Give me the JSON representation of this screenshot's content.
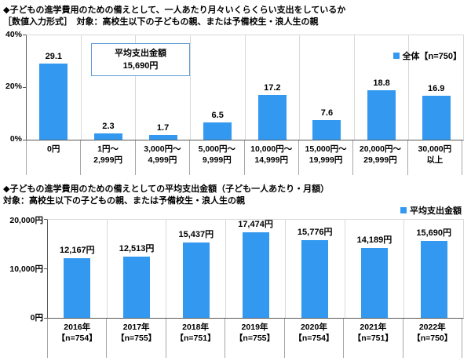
{
  "colors": {
    "bar": "#3399F0",
    "grid": "#D9D9D9",
    "axis": "#595959",
    "separator": "#A6A6A6",
    "annotation_border": "#5B9BD5"
  },
  "chart_data": [
    {
      "type": "bar",
      "title": "◆子どもの進学費用のための備えとして、一人あたり月々いくらくらい支出をしているか",
      "subtitle": "［数値入力形式］　対象：高校生以下の子どもの親、または予備校生・浪人生の親",
      "legend": "全体【n=750】",
      "annotation": {
        "line1": "平均支出金額",
        "line2": "15,690円"
      },
      "categories": [
        "0円",
        "1円～\n2,999円",
        "3,000円～\n4,999円",
        "5,000円～\n9,999円",
        "10,000円～\n14,999円",
        "15,000円～\n19,999円",
        "20,000円～\n29,999円",
        "30,000円\n以上"
      ],
      "values": [
        29.1,
        2.3,
        1.7,
        6.5,
        17.2,
        7.6,
        18.8,
        16.9
      ],
      "value_labels": [
        "29.1",
        "2.3",
        "1.7",
        "6.5",
        "17.2",
        "7.6",
        "18.8",
        "16.9"
      ],
      "ylabel": "%",
      "ylim": [
        0,
        40
      ],
      "yticks": [
        "40%",
        "20%",
        "0%"
      ],
      "grid": "vertical-category-separators",
      "legend_position": "top-right-inside"
    },
    {
      "type": "bar",
      "title": "◆子どもの進学費用のための備えとしての平均支出金額（子ども一人あたり・月額）",
      "subtitle": "対象：高校生以下の子どもの親、または予備校生・浪人生の親",
      "legend": "平均支出金額",
      "categories": [
        "2016年\n【n=754】",
        "2017年\n【n=755】",
        "2018年\n【n=751】",
        "2019年\n【n=755】",
        "2020年\n【n=754】",
        "2021年\n【n=751】",
        "2022年\n【n=750】"
      ],
      "values": [
        12167,
        12513,
        15437,
        17474,
        15776,
        14189,
        15690
      ],
      "value_labels": [
        "12,167円",
        "12,513円",
        "15,437円",
        "17,474円",
        "15,776円",
        "14,189円",
        "15,690円"
      ],
      "ylabel": "円",
      "ylim": [
        0,
        20000
      ],
      "yticks": [
        "20,000円",
        "10,000円",
        "0円"
      ],
      "grid": "vertical-category-separators",
      "legend_position": "above-plot-right"
    }
  ]
}
